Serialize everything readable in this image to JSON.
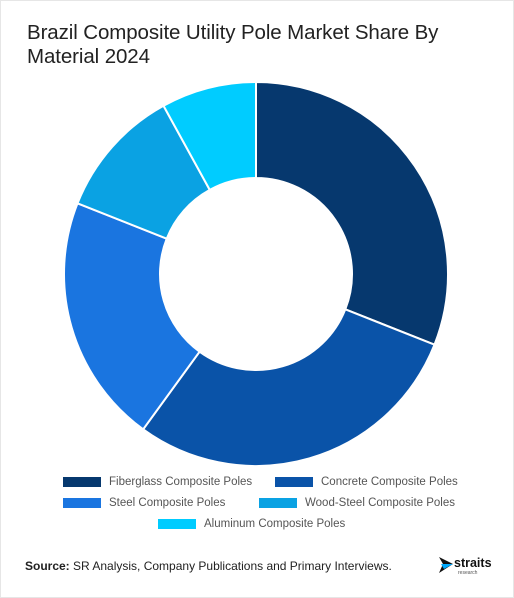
{
  "title": "Brazil Composite Utility Pole Market Share By Material 2024",
  "chart_data": {
    "type": "pie",
    "variant": "donut",
    "categories": [
      "Fiberglass Composite Poles",
      "Concrete Composite Poles",
      "Steel Composite Poles",
      "Wood-Steel Composite Poles",
      "Aluminum Composite Poles"
    ],
    "values": [
      31,
      29,
      21,
      11,
      8
    ],
    "colors": [
      "#06386e",
      "#0a53a8",
      "#1a75e0",
      "#0aa2e3",
      "#00ccff"
    ],
    "legend_position": "bottom"
  },
  "footer": {
    "source_label": "Source:",
    "source_text": " SR Analysis, Company Publications and Primary Interviews."
  },
  "logo": {
    "name": "straits",
    "tagline": "research"
  }
}
